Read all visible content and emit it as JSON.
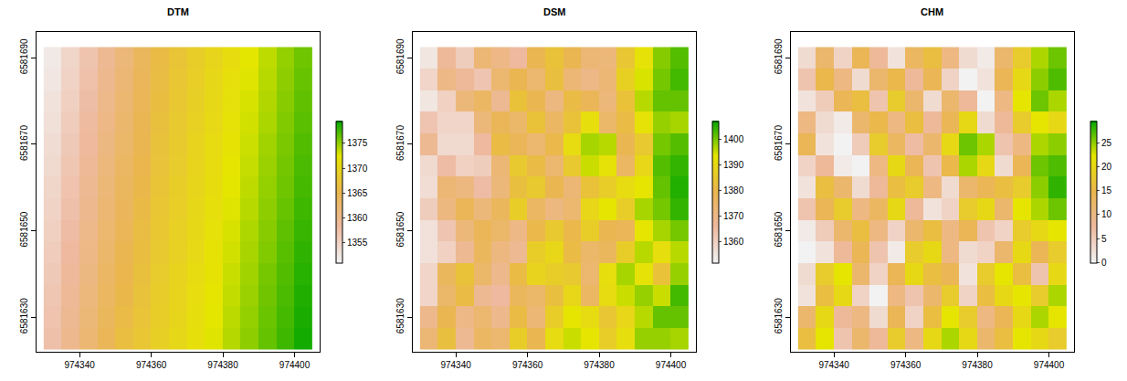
{
  "chart_data": [
    {
      "type": "heatmap",
      "title": "DTM",
      "x": [
        974332.5,
        974337.5,
        974342.5,
        974347.5,
        974352.5,
        974357.5,
        974362.5,
        974367.5,
        974372.5,
        974377.5,
        974382.5,
        974387.5,
        974392.5,
        974397.5,
        974402.5
      ],
      "y": [
        6581690,
        6581685,
        6581680,
        6581675,
        6581670,
        6581665,
        6581660,
        6581655,
        6581650,
        6581645,
        6581640,
        6581635,
        6581630,
        6581625
      ],
      "z": [
        [
          1352.1,
          1354.5,
          1356.8,
          1359.2,
          1361.5,
          1363.9,
          1366.1,
          1367.4,
          1368.6,
          1369.9,
          1371.1,
          1372.4,
          1373.6,
          1374.9,
          1376.1
        ],
        [
          1352.5,
          1354.9,
          1357.2,
          1359.6,
          1361.9,
          1364.2,
          1366.3,
          1367.6,
          1368.8,
          1370.1,
          1371.3,
          1372.6,
          1373.8,
          1375.1,
          1376.3
        ],
        [
          1352.9,
          1355.3,
          1357.6,
          1360.0,
          1362.3,
          1364.5,
          1366.5,
          1367.8,
          1369.0,
          1370.3,
          1371.5,
          1372.8,
          1374.0,
          1375.3,
          1376.5
        ],
        [
          1353.3,
          1355.7,
          1358.0,
          1360.4,
          1362.6,
          1364.7,
          1366.7,
          1368.0,
          1369.2,
          1370.5,
          1371.7,
          1373.0,
          1374.2,
          1375.5,
          1376.7
        ],
        [
          1353.7,
          1356.1,
          1358.4,
          1360.8,
          1363.0,
          1365.0,
          1367.0,
          1368.2,
          1369.5,
          1370.7,
          1372.0,
          1373.2,
          1374.5,
          1375.7,
          1377.0
        ],
        [
          1354.1,
          1356.5,
          1358.8,
          1361.2,
          1363.4,
          1365.3,
          1367.2,
          1368.4,
          1369.7,
          1370.9,
          1372.2,
          1373.4,
          1374.7,
          1375.9,
          1377.2
        ],
        [
          1354.5,
          1356.9,
          1359.2,
          1361.6,
          1363.8,
          1365.6,
          1367.4,
          1368.6,
          1369.9,
          1371.1,
          1372.4,
          1373.6,
          1374.9,
          1376.1,
          1377.4
        ],
        [
          1354.9,
          1357.3,
          1359.6,
          1362.0,
          1364.1,
          1365.9,
          1367.6,
          1368.8,
          1370.1,
          1371.3,
          1372.6,
          1373.8,
          1375.1,
          1376.3,
          1377.6
        ],
        [
          1355.3,
          1357.7,
          1360.0,
          1362.4,
          1364.5,
          1366.2,
          1367.8,
          1369.1,
          1370.3,
          1371.6,
          1372.8,
          1374.1,
          1375.3,
          1376.6,
          1377.8
        ],
        [
          1355.7,
          1358.1,
          1360.4,
          1362.8,
          1364.9,
          1366.5,
          1368.0,
          1369.3,
          1370.5,
          1371.8,
          1373.0,
          1374.3,
          1375.5,
          1376.8,
          1378.0
        ],
        [
          1356.1,
          1358.5,
          1360.8,
          1363.2,
          1365.3,
          1366.7,
          1368.3,
          1369.5,
          1370.8,
          1372.0,
          1373.3,
          1374.5,
          1375.8,
          1377.0,
          1378.3
        ],
        [
          1356.5,
          1358.9,
          1361.2,
          1363.6,
          1365.6,
          1367.0,
          1368.5,
          1369.7,
          1371.0,
          1372.2,
          1373.5,
          1374.7,
          1376.0,
          1377.2,
          1378.5
        ],
        [
          1356.9,
          1359.3,
          1361.6,
          1364.0,
          1366.0,
          1367.3,
          1368.7,
          1369.9,
          1371.2,
          1372.4,
          1373.7,
          1374.9,
          1376.2,
          1377.4,
          1378.7
        ],
        [
          1357.3,
          1359.7,
          1362.0,
          1364.4,
          1366.4,
          1367.6,
          1368.9,
          1370.1,
          1371.4,
          1372.6,
          1373.9,
          1375.1,
          1376.4,
          1377.6,
          1378.9
        ]
      ],
      "xlim": [
        974328,
        974407
      ],
      "ylim": [
        6581622,
        6581696
      ],
      "xticks": [
        974340,
        974360,
        974380,
        974400
      ],
      "yticks": [
        6581630,
        6581650,
        6581670,
        6581690
      ],
      "colorbar_range": [
        1351,
        1379.5
      ],
      "colorbar_ticks": [
        1355,
        1360,
        1365,
        1370,
        1375
      ]
    },
    {
      "type": "heatmap",
      "title": "DSM",
      "x": [
        974332.5,
        974337.5,
        974342.5,
        974347.5,
        974352.5,
        974357.5,
        974362.5,
        974367.5,
        974372.5,
        974377.5,
        974382.5,
        974387.5,
        974392.5,
        974397.5,
        974402.5
      ],
      "y": [
        6581690,
        6581685,
        6581680,
        6581675,
        6581670,
        6581665,
        6581660,
        6581655,
        6581650,
        6581645,
        6581640,
        6581635,
        6581630,
        6581625
      ],
      "z": [
        [
          1355,
          1367,
          1361,
          1373,
          1370,
          1366,
          1379,
          1383,
          1379,
          1373,
          1372,
          1384,
          1392,
          1399,
          1402
        ],
        [
          1359,
          1370,
          1367,
          1363,
          1374,
          1379,
          1374,
          1382,
          1373,
          1370,
          1373,
          1387,
          1394,
          1400,
          1403
        ],
        [
          1355,
          1360,
          1372,
          1376,
          1368,
          1383,
          1379,
          1371,
          1381,
          1378,
          1372,
          1383,
          1396,
          1401,
          1401
        ],
        [
          1363,
          1359,
          1359,
          1372,
          1378,
          1375,
          1383,
          1376,
          1383,
          1391,
          1375,
          1381,
          1392,
          1398,
          1397
        ],
        [
          1368,
          1358,
          1358,
          1366,
          1381,
          1378,
          1374,
          1380,
          1390,
          1397,
          1396,
          1379,
          1385,
          1400,
          1402
        ],
        [
          1358,
          1365,
          1360,
          1361,
          1373,
          1385,
          1381,
          1374,
          1385,
          1395,
          1392,
          1376,
          1389,
          1402,
          1404
        ],
        [
          1357,
          1373,
          1371,
          1365,
          1372,
          1382,
          1385,
          1379,
          1373,
          1383,
          1386,
          1390,
          1393,
          1401,
          1405
        ],
        [
          1361,
          1371,
          1378,
          1372,
          1377,
          1386,
          1376,
          1371,
          1374,
          1389,
          1393,
          1386,
          1397,
          1400,
          1404
        ],
        [
          1356,
          1363,
          1372,
          1378,
          1375,
          1370,
          1380,
          1385,
          1380,
          1386,
          1379,
          1378,
          1393,
          1397,
          1400
        ],
        [
          1356,
          1360,
          1368,
          1377,
          1371,
          1368,
          1386,
          1389,
          1381,
          1375,
          1377,
          1386,
          1396,
          1391,
          1396
        ],
        [
          1359,
          1377,
          1383,
          1375,
          1369,
          1381,
          1388,
          1386,
          1385,
          1374,
          1391,
          1397,
          1392,
          1383,
          1398
        ],
        [
          1359,
          1375,
          1381,
          1368,
          1366,
          1377,
          1375,
          1382,
          1389,
          1376,
          1390,
          1395,
          1398,
          1395,
          1403
        ],
        [
          1369,
          1379,
          1370,
          1374,
          1369,
          1381,
          1373,
          1386,
          1393,
          1390,
          1384,
          1389,
          1396,
          1401,
          1401
        ],
        [
          1373,
          1382,
          1368,
          1376,
          1374,
          1386,
          1379,
          1390,
          1395,
          1393,
          1386,
          1391,
          1398,
          1398,
          1397
        ]
      ],
      "xlim": [
        974328,
        974407
      ],
      "ylim": [
        6581622,
        6581696
      ],
      "xticks": [
        974340,
        974360,
        974380,
        974400
      ],
      "yticks": [
        6581630,
        6581650,
        6581670,
        6581690
      ],
      "colorbar_range": [
        1352,
        1407
      ],
      "colorbar_ticks": [
        1360,
        1370,
        1380,
        1390,
        1400
      ]
    },
    {
      "type": "heatmap",
      "title": "CHM",
      "x": [
        974332.5,
        974337.5,
        974342.5,
        974347.5,
        974352.5,
        974357.5,
        974362.5,
        974367.5,
        974372.5,
        974377.5,
        974382.5,
        974387.5,
        974392.5,
        974397.5,
        974402.5
      ],
      "y": [
        6581690,
        6581685,
        6581680,
        6581675,
        6581670,
        6581665,
        6581660,
        6581655,
        6581650,
        6581645,
        6581640,
        6581635,
        6581630,
        6581625
      ],
      "z": [
        [
          3,
          12,
          4,
          14,
          8,
          2,
          13,
          16,
          10,
          3,
          1,
          12,
          18,
          24,
          26
        ],
        [
          6,
          15,
          10,
          3,
          12,
          15,
          8,
          14,
          4,
          0,
          2,
          14,
          20,
          25,
          27
        ],
        [
          2,
          5,
          14,
          16,
          6,
          18,
          12,
          3,
          12,
          8,
          0,
          10,
          22,
          26,
          24
        ],
        [
          10,
          3,
          1,
          12,
          15,
          10,
          16,
          8,
          14,
          20,
          3,
          8,
          18,
          22,
          20
        ],
        [
          14,
          2,
          0,
          5,
          18,
          13,
          7,
          12,
          20,
          26,
          24,
          6,
          10,
          24,
          25
        ],
        [
          4,
          8,
          1,
          0,
          10,
          20,
          14,
          6,
          15,
          24,
          20,
          3,
          14,
          26,
          27
        ],
        [
          2,
          16,
          12,
          3,
          8,
          16,
          18,
          10,
          3,
          12,
          14,
          16,
          18,
          25,
          28
        ],
        [
          6,
          14,
          18,
          10,
          13,
          20,
          8,
          2,
          4,
          18,
          20,
          12,
          22,
          24,
          26
        ],
        [
          1,
          5,
          12,
          16,
          10,
          4,
          12,
          16,
          10,
          14,
          6,
          4,
          18,
          20,
          22
        ],
        [
          0,
          2,
          8,
          14,
          6,
          1,
          18,
          20,
          10,
          3,
          4,
          12,
          20,
          14,
          18
        ],
        [
          3,
          18,
          22,
          12,
          4,
          14,
          20,
          16,
          14,
          2,
          18,
          22,
          16,
          6,
          20
        ],
        [
          2,
          16,
          20,
          4,
          0,
          10,
          6,
          12,
          18,
          4,
          16,
          20,
          22,
          18,
          24
        ],
        [
          12,
          20,
          8,
          10,
          3,
          14,
          4,
          16,
          22,
          18,
          10,
          14,
          20,
          24,
          22
        ],
        [
          16,
          22,
          6,
          12,
          8,
          18,
          10,
          20,
          24,
          20,
          12,
          16,
          22,
          20,
          18
        ]
      ],
      "xlim": [
        974328,
        974407
      ],
      "ylim": [
        6581622,
        6581696
      ],
      "xticks": [
        974340,
        974360,
        974380,
        974400
      ],
      "yticks": [
        6581630,
        6581650,
        6581670,
        6581690
      ],
      "colorbar_range": [
        0,
        29.5
      ],
      "colorbar_ticks": [
        0,
        5,
        10,
        15,
        20,
        25
      ]
    }
  ]
}
